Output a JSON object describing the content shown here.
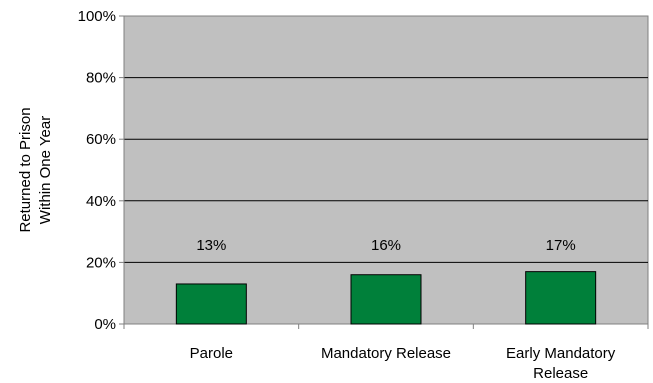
{
  "chart_data": {
    "type": "bar",
    "title": "",
    "xlabel": "",
    "ylabel_lines": [
      "Returned to Prison",
      "Within One Year"
    ],
    "categories": [
      [
        "Parole"
      ],
      [
        "Mandatory Release"
      ],
      [
        "Early Mandatory",
        "Release"
      ]
    ],
    "values": [
      13,
      16,
      17
    ],
    "value_labels": [
      "13%",
      "16%",
      "17%"
    ],
    "ylim": [
      0,
      100
    ],
    "yticks": [
      0,
      20,
      40,
      60,
      80,
      100
    ],
    "ytick_labels": [
      "0%",
      "20%",
      "40%",
      "60%",
      "80%",
      "100%"
    ],
    "grid": true,
    "legend": "none",
    "colors": {
      "plot_background": "#c0c0c0",
      "bar_fill": "#00803a",
      "bar_stroke": "#000000",
      "gridline": "#000000",
      "axis": "#808080"
    }
  }
}
